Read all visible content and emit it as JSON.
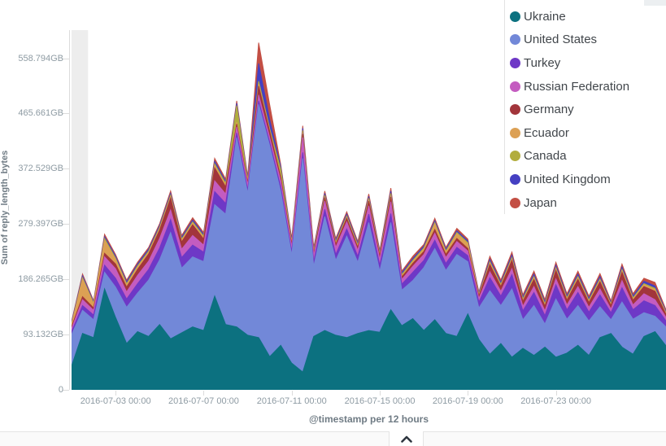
{
  "window": {
    "bottom_panel": {
      "collapse_icon": "chevron-up"
    }
  },
  "chart_data": {
    "type": "area",
    "stacked": true,
    "title": "",
    "xlabel": "@timestamp per 12 hours",
    "ylabel": "Sum of reply_length_bytes",
    "x_start": "2016-07-01 00:00",
    "x_interval_hours": 12,
    "n_points": 55,
    "ylim_gb": [
      0,
      600
    ],
    "y_tick_labels": [
      "558.794GB",
      "465.661GB",
      "372.529GB",
      "279.397GB",
      "186.265GB",
      "93.132GB",
      "0"
    ],
    "y_tick_values_gb": [
      558.794,
      465.661,
      372.529,
      279.397,
      186.265,
      93.132,
      0
    ],
    "x_tick_labels": [
      "2016-07-03 00:00",
      "2016-07-07 00:00",
      "2016-07-11 00:00",
      "2016-07-15 00:00",
      "2016-07-19 00:00",
      "2016-07-23 00:00"
    ],
    "x_tick_indices": [
      4,
      12,
      20,
      28,
      36,
      44
    ],
    "legend_position": "top-right",
    "grid": false,
    "partial_bucket_zone": {
      "side": "left",
      "buckets": 1.5,
      "color": "#ededed"
    },
    "series": [
      {
        "name": "Ukraine",
        "color": "#0c7180",
        "values_gb": [
          40,
          95,
          88,
          170,
          122,
          78,
          98,
          90,
          110,
          86,
          96,
          106,
          100,
          158,
          110,
          106,
          92,
          88,
          56,
          75,
          45,
          30,
          90,
          100,
          92,
          88,
          95,
          100,
          97,
          135,
          108,
          120,
          100,
          118,
          95,
          90,
          128,
          85,
          60,
          78,
          55,
          70,
          58,
          72,
          55,
          62,
          75,
          58,
          88,
          95,
          72,
          60,
          90,
          98,
          74
        ]
      },
      {
        "name": "United States",
        "color": "#7288d8",
        "values_gb": [
          53,
          39,
          30,
          28,
          51,
          61,
          65,
          95,
          109,
          179,
          109,
          118,
          116,
          154,
          186,
          319,
          239,
          393,
          355,
          259,
          182,
          360,
          118,
          192,
          126,
          171,
          120,
          182,
          103,
          147,
          60,
          64,
          106,
          120,
          106,
          138,
          88,
          53,
          107,
          64,
          115,
          48,
          84,
          39,
          98,
          57,
          67,
          58,
          52,
          23,
          76,
          59,
          40,
          26,
          32
        ]
      },
      {
        "name": "Turkey",
        "color": "#6e38c6",
        "values_gb": [
          5,
          8,
          8,
          12,
          15,
          14,
          16,
          18,
          20,
          22,
          18,
          20,
          16,
          22,
          18,
          8,
          6,
          6,
          6,
          8,
          6,
          10,
          8,
          12,
          10,
          12,
          10,
          14,
          10,
          15,
          10,
          14,
          12,
          14,
          12,
          12,
          10,
          10,
          22,
          16,
          24,
          15,
          22,
          14,
          24,
          16,
          22,
          15,
          20,
          12,
          24,
          16,
          20,
          18,
          10
        ]
      },
      {
        "name": "Russian Federation",
        "color": "#c45cc0",
        "values_gb": [
          5,
          10,
          8,
          14,
          16,
          12,
          14,
          14,
          16,
          16,
          14,
          16,
          12,
          18,
          16,
          10,
          8,
          10,
          8,
          10,
          8,
          25,
          10,
          14,
          12,
          12,
          10,
          14,
          10,
          20,
          8,
          10,
          10,
          12,
          10,
          10,
          8,
          6,
          10,
          8,
          10,
          8,
          10,
          8,
          10,
          8,
          10,
          8,
          10,
          6,
          12,
          8,
          12,
          10,
          6
        ]
      },
      {
        "name": "Germany",
        "color": "#a2353b",
        "values_gb": [
          3,
          5,
          4,
          6,
          8,
          8,
          10,
          12,
          14,
          20,
          12,
          18,
          10,
          22,
          12,
          5,
          4,
          15,
          10,
          6,
          4,
          6,
          4,
          6,
          5,
          6,
          5,
          8,
          5,
          8,
          4,
          5,
          5,
          6,
          5,
          5,
          4,
          4,
          12,
          8,
          14,
          8,
          12,
          8,
          14,
          8,
          12,
          8,
          12,
          6,
          14,
          8,
          12,
          14,
          5
        ]
      },
      {
        "name": "Ecuador",
        "color": "#dca054",
        "values_gb": [
          4,
          30,
          6,
          22,
          8,
          4,
          4,
          3,
          3,
          3,
          3,
          3,
          3,
          4,
          3,
          3,
          2,
          3,
          2,
          2,
          2,
          3,
          2,
          2,
          2,
          2,
          2,
          3,
          2,
          3,
          2,
          3,
          4,
          10,
          4,
          8,
          8,
          2,
          3,
          2,
          3,
          2,
          3,
          2,
          3,
          2,
          3,
          2,
          3,
          2,
          3,
          2,
          3,
          3,
          2
        ]
      },
      {
        "name": "Canada",
        "color": "#b2ad3d",
        "values_gb": [
          1,
          2,
          2,
          3,
          2,
          2,
          2,
          2,
          2,
          2,
          2,
          2,
          2,
          3,
          3,
          28,
          3,
          5,
          3,
          12,
          2,
          3,
          2,
          2,
          2,
          2,
          2,
          2,
          2,
          3,
          2,
          2,
          2,
          2,
          2,
          2,
          2,
          1,
          2,
          2,
          2,
          2,
          2,
          2,
          2,
          2,
          2,
          2,
          2,
          1,
          2,
          2,
          2,
          2,
          1
        ]
      },
      {
        "name": "United Kingdom",
        "color": "#4540c2",
        "values_gb": [
          2,
          3,
          2,
          3,
          3,
          3,
          3,
          3,
          3,
          3,
          3,
          3,
          3,
          4,
          3,
          4,
          3,
          30,
          15,
          4,
          3,
          4,
          3,
          3,
          3,
          3,
          3,
          3,
          3,
          4,
          3,
          3,
          3,
          3,
          3,
          3,
          3,
          2,
          4,
          3,
          4,
          3,
          4,
          3,
          4,
          3,
          4,
          3,
          4,
          2,
          4,
          3,
          4,
          4,
          2
        ]
      },
      {
        "name": "Japan",
        "color": "#c34f44",
        "values_gb": [
          2,
          3,
          2,
          4,
          3,
          3,
          3,
          3,
          3,
          4,
          3,
          4,
          3,
          5,
          4,
          4,
          3,
          35,
          25,
          4,
          3,
          4,
          3,
          4,
          3,
          4,
          3,
          4,
          3,
          5,
          3,
          4,
          3,
          4,
          3,
          4,
          3,
          2,
          5,
          4,
          5,
          4,
          5,
          4,
          5,
          4,
          5,
          4,
          5,
          3,
          5,
          4,
          5,
          6,
          3
        ]
      }
    ]
  }
}
